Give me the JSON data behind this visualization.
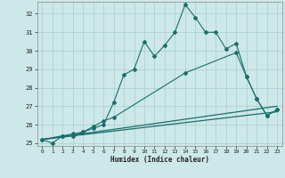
{
  "xlabel": "Humidex (Indice chaleur)",
  "xlim": [
    -0.5,
    23.5
  ],
  "ylim": [
    24.85,
    32.65
  ],
  "yticks": [
    25,
    26,
    27,
    28,
    29,
    30,
    31,
    32
  ],
  "xticks": [
    0,
    1,
    2,
    3,
    4,
    5,
    6,
    7,
    8,
    9,
    10,
    11,
    12,
    13,
    14,
    15,
    16,
    17,
    18,
    19,
    20,
    21,
    22,
    23
  ],
  "bg_color": "#cde8e8",
  "grid_color": "#aacece",
  "line_color": "#1a6e6a",
  "series": [
    {
      "x": [
        0,
        1,
        2,
        3,
        4,
        5,
        6,
        7,
        8,
        9,
        10,
        11,
        12,
        13,
        14,
        15,
        16,
        17,
        18,
        19,
        20,
        21,
        22,
        23
      ],
      "y": [
        25.2,
        25.0,
        25.4,
        25.4,
        25.6,
        25.8,
        26.0,
        27.2,
        28.7,
        29.0,
        30.5,
        29.7,
        30.3,
        31.0,
        32.5,
        31.8,
        31.0,
        31.0,
        30.1,
        30.4,
        28.6,
        27.4,
        26.5,
        26.8
      ],
      "marker": "D",
      "markersize": 2.0,
      "linewidth": 0.8
    },
    {
      "x": [
        0,
        2,
        3,
        4,
        5,
        6,
        7,
        14,
        19,
        20,
        21,
        22,
        23
      ],
      "y": [
        25.2,
        25.4,
        25.5,
        25.6,
        25.9,
        26.2,
        26.4,
        28.8,
        29.9,
        28.6,
        27.4,
        26.5,
        26.8
      ],
      "marker": "D",
      "markersize": 2.0,
      "linewidth": 0.8
    },
    {
      "x": [
        0,
        23
      ],
      "y": [
        25.2,
        27.0
      ],
      "marker": null,
      "markersize": 0,
      "linewidth": 0.9
    },
    {
      "x": [
        0,
        23
      ],
      "y": [
        25.2,
        26.7
      ],
      "marker": null,
      "markersize": 0,
      "linewidth": 0.9
    }
  ]
}
